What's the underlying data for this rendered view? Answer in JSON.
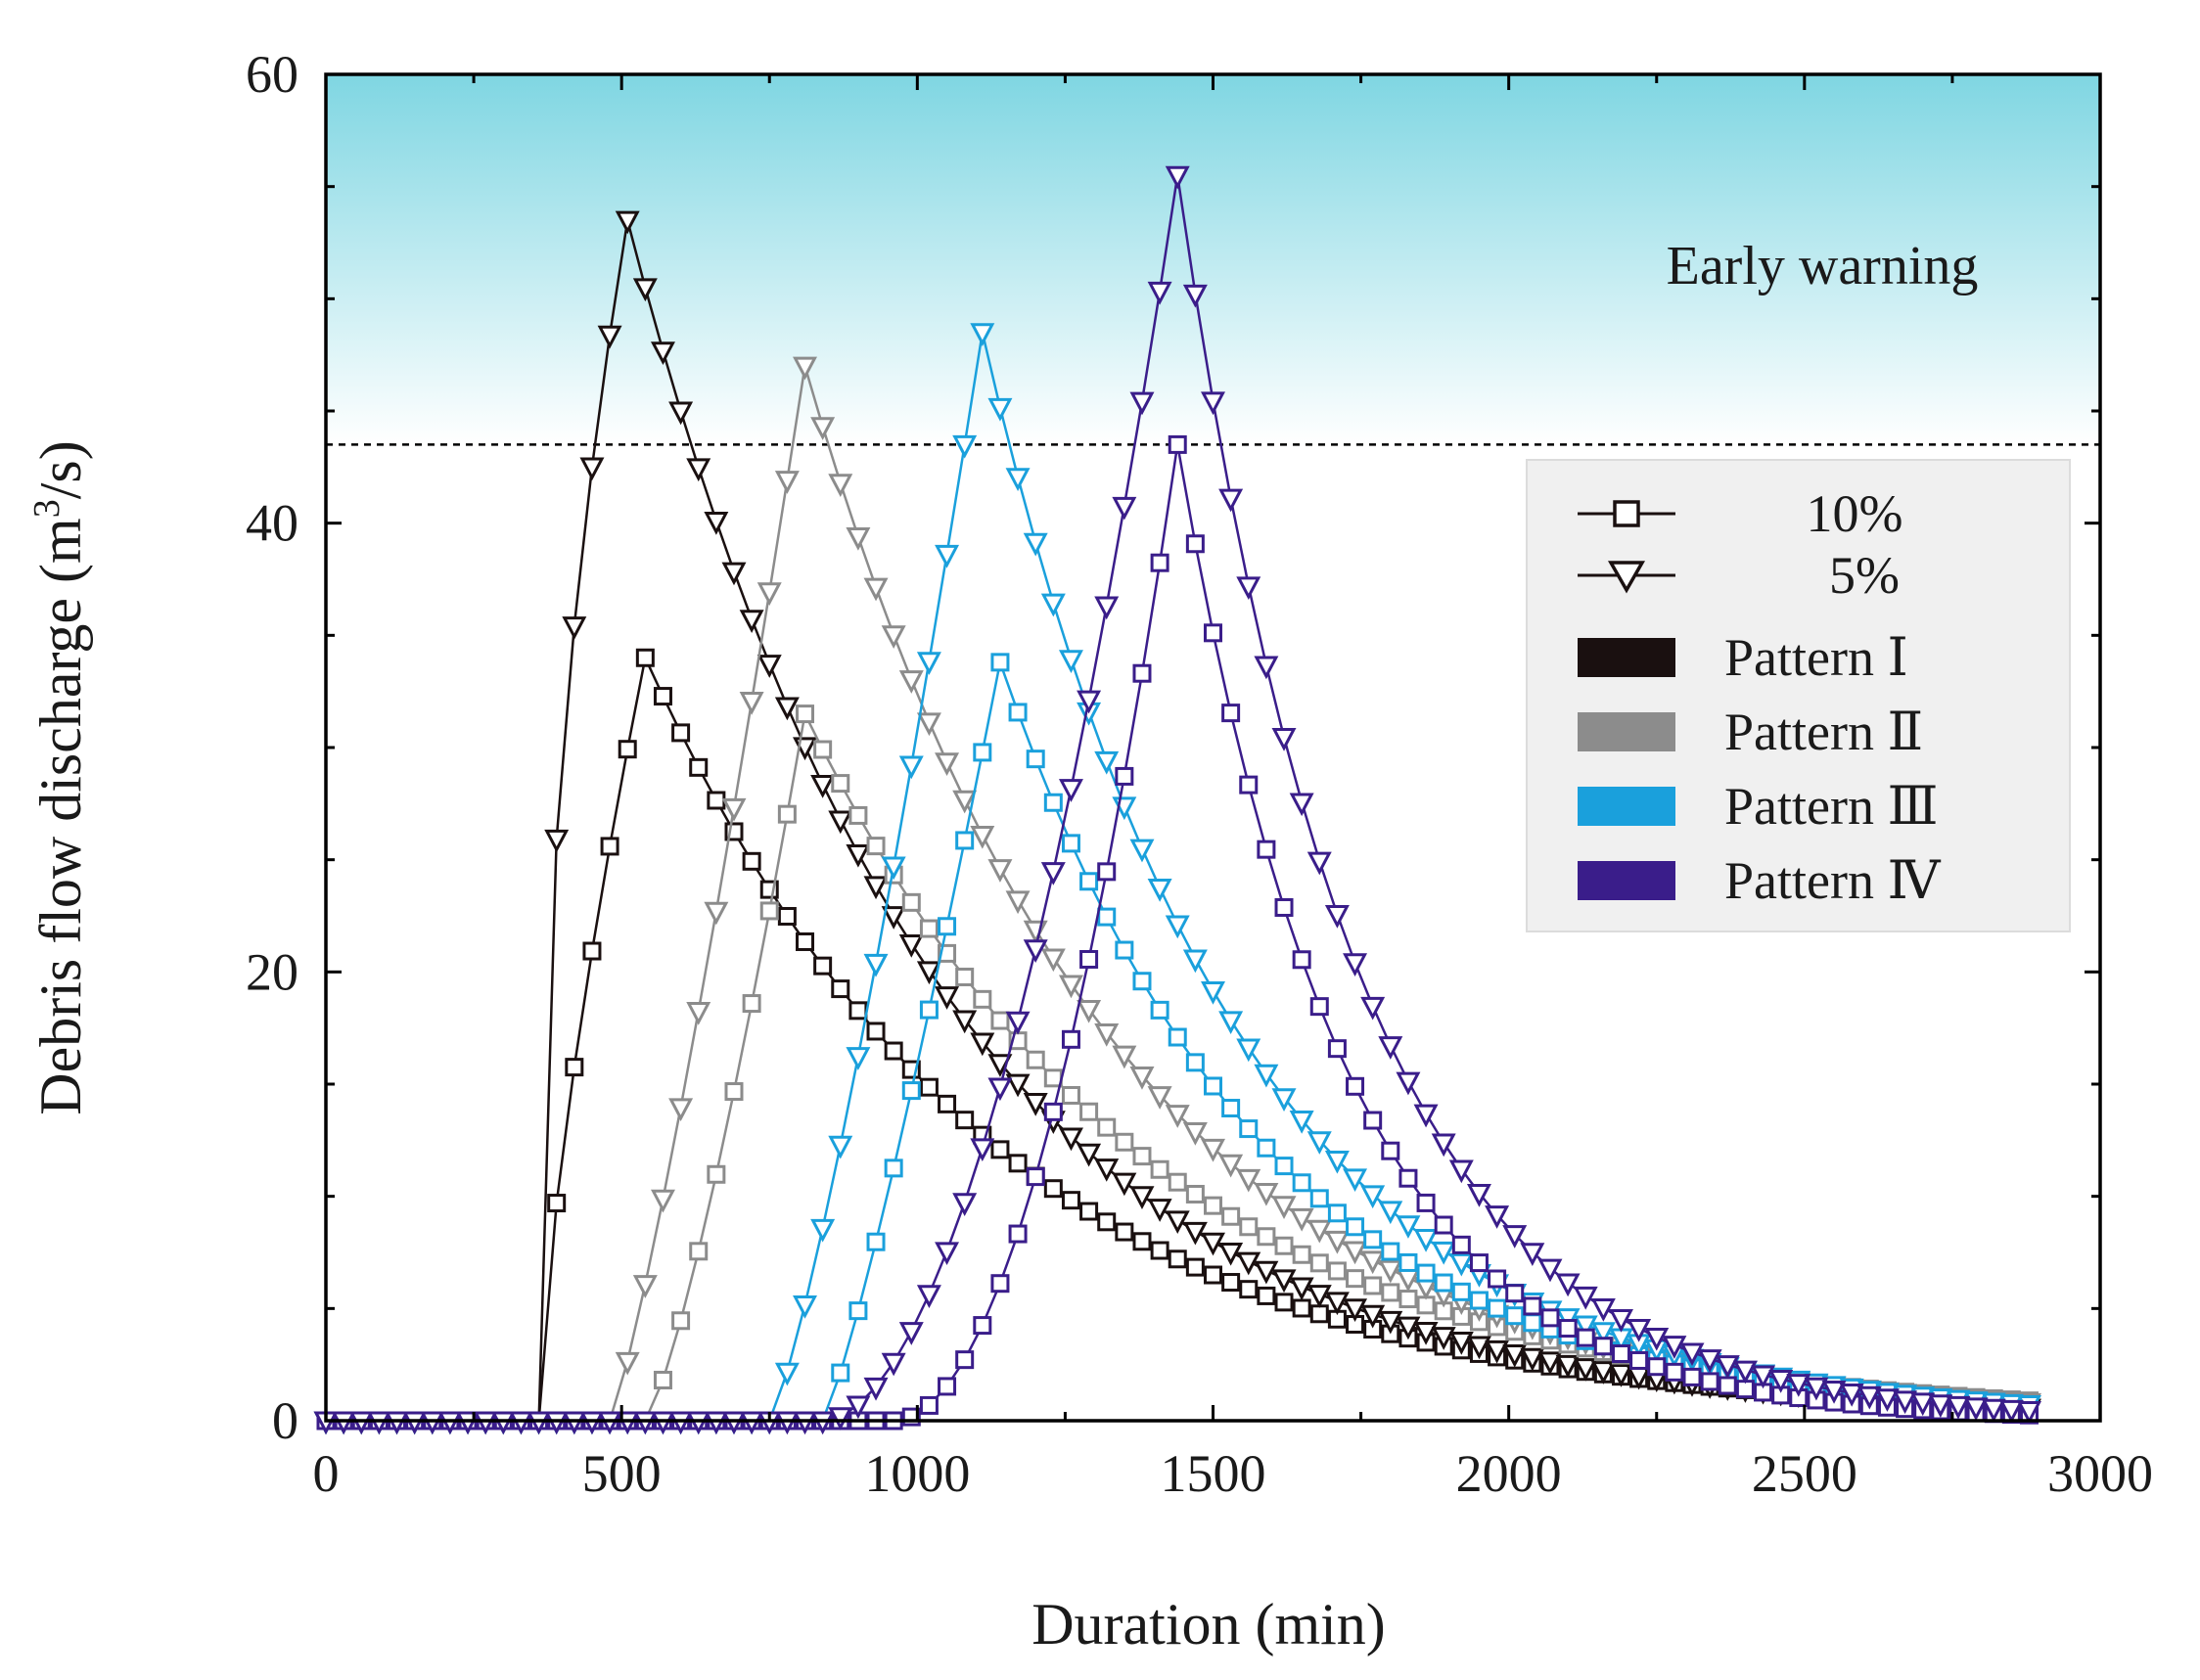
{
  "chart_data": {
    "type": "line",
    "title": "",
    "xlabel": "Duration (min)",
    "ylabel": "Debris flow discharge (m³/s)",
    "ylabel_parts": {
      "main": "Debris flow discharge (m",
      "sup": "3",
      "tail": "/s)"
    },
    "xlim": [
      0,
      3000
    ],
    "ylim": [
      0,
      60
    ],
    "xticks": [
      0,
      500,
      1000,
      1500,
      2000,
      2500,
      3000
    ],
    "yticks": [
      0,
      20,
      40,
      60
    ],
    "grid": false,
    "threshold": {
      "value": 43.5,
      "label": "Early warning",
      "zone_color_top": "#7fd6e2",
      "zone_color_bottom": "#ffffff"
    },
    "sampling_interval_min": 30,
    "x_end": 2880,
    "legend": {
      "placement": "right",
      "markers": [
        {
          "label": "10%",
          "marker": "square"
        },
        {
          "label": "5%",
          "marker": "triangle-down"
        }
      ],
      "patterns": [
        {
          "label": "Pattern Ⅰ",
          "color": "#1a1010"
        },
        {
          "label": "Pattern Ⅱ",
          "color": "#8c8c8c"
        },
        {
          "label": "Pattern Ⅲ",
          "color": "#1aa0dc"
        },
        {
          "label": "Pattern Ⅳ",
          "color": "#3a1d8a"
        }
      ]
    },
    "series": [
      {
        "name": "Pattern Ⅰ, 10%",
        "pattern": "Pattern Ⅰ",
        "frequency": "10%",
        "marker": "square",
        "color": "#1a1010",
        "onset": 360,
        "peak_x": 540,
        "peak_y": 34,
        "rise_shape": 0.7,
        "decay_minutes": 580
      },
      {
        "name": "Pattern Ⅰ, 5%",
        "pattern": "Pattern Ⅰ",
        "frequency": "5%",
        "marker": "triangle-down",
        "color": "#1a1010",
        "onset": 360,
        "peak_x": 510,
        "peak_y": 53.5,
        "rise_shape": 0.45,
        "decay_minutes": 520
      },
      {
        "name": "Pattern Ⅱ, 10%",
        "pattern": "Pattern Ⅱ",
        "frequency": "10%",
        "marker": "square",
        "color": "#8c8c8c",
        "onset": 540,
        "peak_x": 810,
        "peak_y": 31.5,
        "rise_shape": 1.3,
        "decay_minutes": 580
      },
      {
        "name": "Pattern Ⅱ, 5%",
        "pattern": "Pattern Ⅱ",
        "frequency": "5%",
        "marker": "triangle-down",
        "color": "#8c8c8c",
        "onset": 480,
        "peak_x": 810,
        "peak_y": 47,
        "rise_shape": 1.2,
        "decay_minutes": 510
      },
      {
        "name": "Pattern Ⅲ, 10%",
        "pattern": "Pattern Ⅲ",
        "frequency": "10%",
        "marker": "square",
        "color": "#1aa0dc",
        "onset": 840,
        "peak_x": 1140,
        "peak_y": 33.8,
        "rise_shape": 1.2,
        "decay_minutes": 440
      },
      {
        "name": "Pattern Ⅲ, 5%",
        "pattern": "Pattern Ⅲ",
        "frequency": "5%",
        "marker": "triangle-down",
        "color": "#1aa0dc",
        "onset": 750,
        "peak_x": 1110,
        "peak_y": 48.5,
        "rise_shape": 1.25,
        "decay_minutes": 420
      },
      {
        "name": "Pattern Ⅳ, 10%",
        "pattern": "Pattern Ⅳ",
        "frequency": "10%",
        "marker": "square",
        "color": "#3a1d8a",
        "onset": 960,
        "peak_x": 1440,
        "peak_y": 43.5,
        "rise_shape": 2.0,
        "decay_minutes": 280
      },
      {
        "name": "Pattern Ⅳ, 5%",
        "pattern": "Pattern Ⅳ",
        "frequency": "5%",
        "marker": "triangle-down",
        "color": "#3a1d8a",
        "onset": 840,
        "peak_x": 1440,
        "peak_y": 55.5,
        "rise_shape": 1.9,
        "decay_minutes": 300
      }
    ]
  }
}
